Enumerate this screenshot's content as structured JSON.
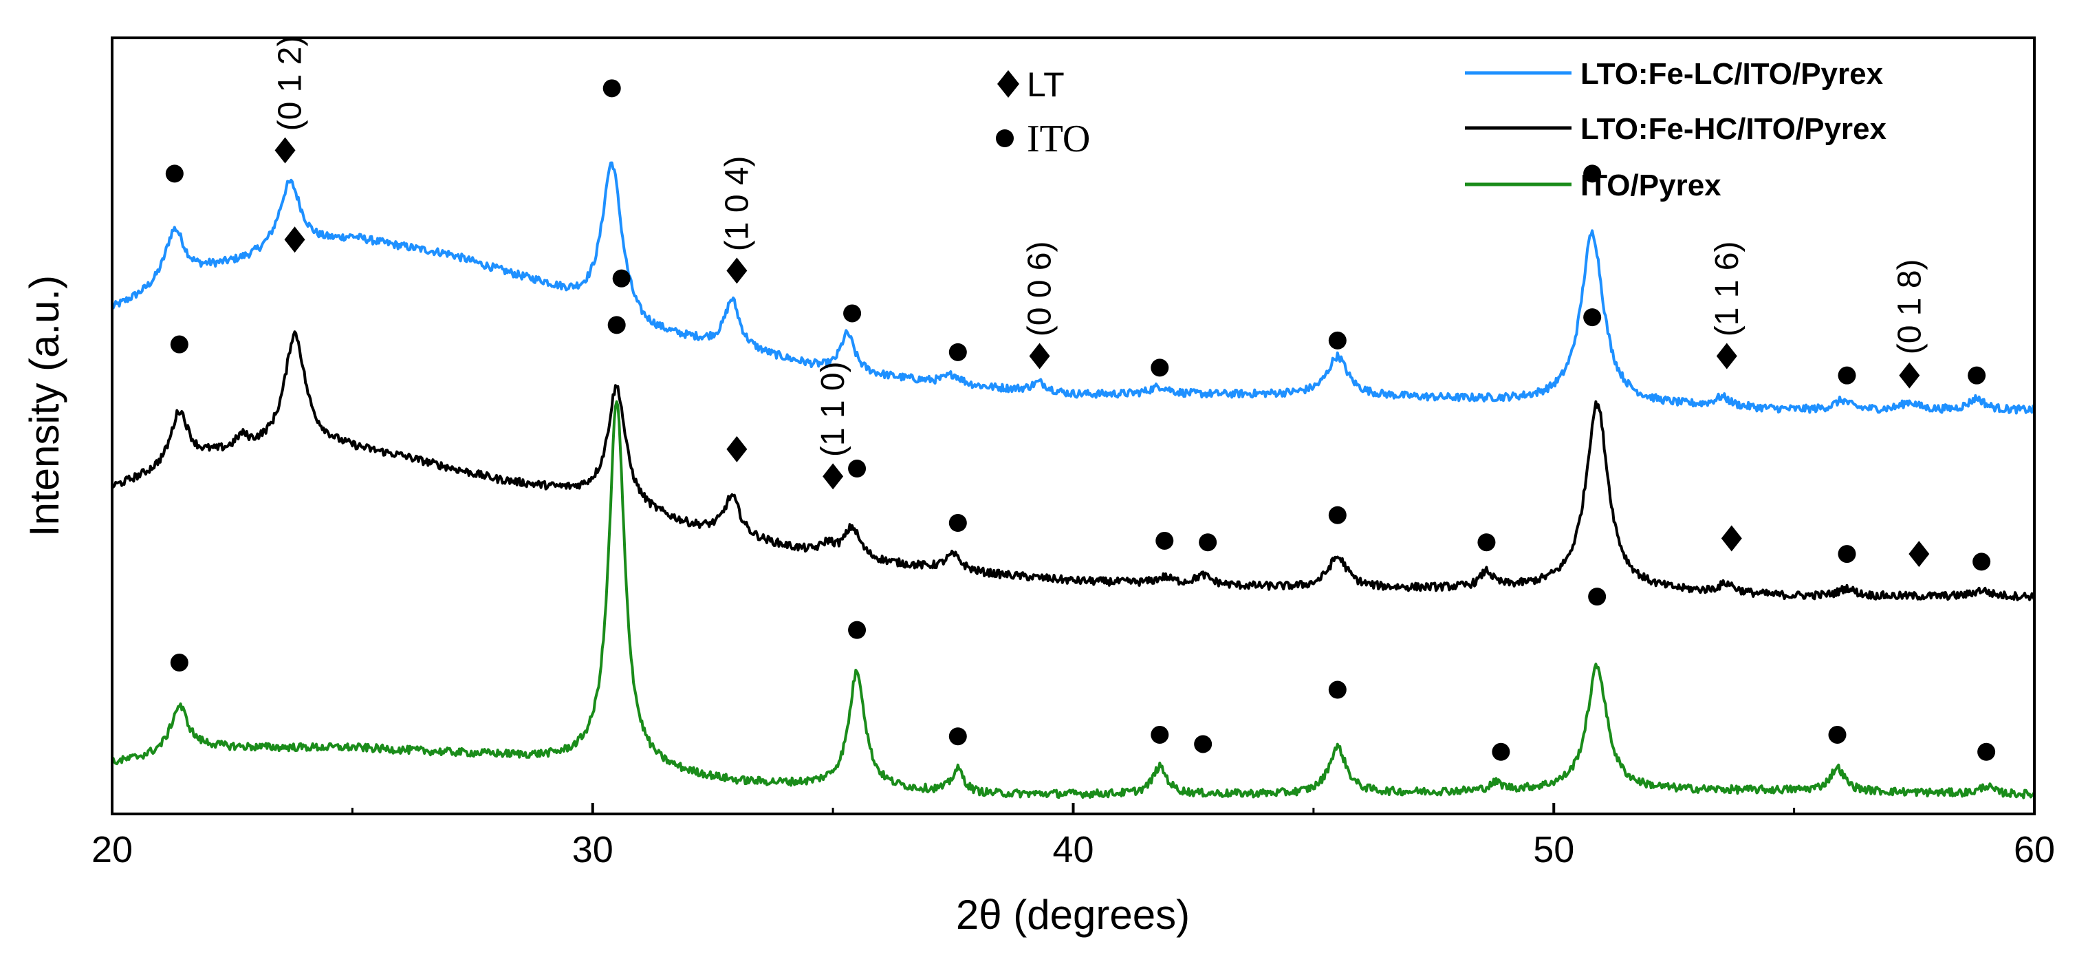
{
  "chart_data": {
    "type": "line",
    "title": "",
    "xlabel": "2θ (degrees)",
    "ylabel": "Intensity (a.u.)",
    "xlim": [
      20,
      60
    ],
    "ylim": [
      0,
      1
    ],
    "xticks": [
      20,
      30,
      40,
      50,
      60
    ],
    "xtick_labels": [
      "20",
      "30",
      "40",
      "50",
      "60"
    ],
    "yticks_shown": false,
    "legend_position": "top-right",
    "marker_legend": [
      {
        "symbol": "diamond",
        "label": "LT"
      },
      {
        "symbol": "circle",
        "label": "ITO"
      }
    ],
    "series": [
      {
        "name": "LTO:Fe-LC/ITO/Pyrex",
        "color": "#1e90ff",
        "baseline": [
          [
            20,
            0.65
          ],
          [
            22,
            0.7
          ],
          [
            25,
            0.74
          ],
          [
            27,
            0.72
          ],
          [
            29,
            0.68
          ],
          [
            31,
            0.62
          ],
          [
            33,
            0.6
          ],
          [
            35,
            0.57
          ],
          [
            38,
            0.55
          ],
          [
            40,
            0.54
          ],
          [
            45,
            0.54
          ],
          [
            50,
            0.53
          ],
          [
            55,
            0.52
          ],
          [
            60,
            0.52
          ]
        ],
        "peaks": [
          {
            "x": 21.3,
            "h": 0.07,
            "w": 0.25
          },
          {
            "x": 23.7,
            "h": 0.09,
            "w": 0.28
          },
          {
            "x": 30.4,
            "h": 0.2,
            "w": 0.25
          },
          {
            "x": 32.9,
            "h": 0.06,
            "w": 0.18
          },
          {
            "x": 35.3,
            "h": 0.05,
            "w": 0.18
          },
          {
            "x": 37.5,
            "h": 0.012,
            "w": 0.2
          },
          {
            "x": 39.3,
            "h": 0.012,
            "w": 0.2
          },
          {
            "x": 41.8,
            "h": 0.01,
            "w": 0.25
          },
          {
            "x": 45.5,
            "h": 0.05,
            "w": 0.25
          },
          {
            "x": 50.8,
            "h": 0.22,
            "w": 0.28
          },
          {
            "x": 53.5,
            "h": 0.012,
            "w": 0.2
          },
          {
            "x": 56.0,
            "h": 0.012,
            "w": 0.2
          },
          {
            "x": 57.4,
            "h": 0.01,
            "w": 0.2
          },
          {
            "x": 58.8,
            "h": 0.015,
            "w": 0.2
          }
        ],
        "markers": [
          {
            "x": 21.3,
            "symbol": "circle",
            "y": 0.825
          },
          {
            "x": 23.6,
            "symbol": "diamond",
            "y": 0.855
          },
          {
            "x": 30.4,
            "symbol": "circle",
            "y": 0.935
          },
          {
            "x": 33.0,
            "symbol": "diamond",
            "y": 0.7
          },
          {
            "x": 35.4,
            "symbol": "circle",
            "y": 0.645
          },
          {
            "x": 37.6,
            "symbol": "circle",
            "y": 0.595
          },
          {
            "x": 39.3,
            "symbol": "diamond",
            "y": 0.59
          },
          {
            "x": 41.8,
            "symbol": "circle",
            "y": 0.575
          },
          {
            "x": 45.5,
            "symbol": "circle",
            "y": 0.61
          },
          {
            "x": 50.8,
            "symbol": "circle",
            "y": 0.825
          },
          {
            "x": 53.6,
            "symbol": "diamond",
            "y": 0.59
          },
          {
            "x": 56.1,
            "symbol": "circle",
            "y": 0.565
          },
          {
            "x": 57.4,
            "symbol": "diamond",
            "y": 0.565
          },
          {
            "x": 58.8,
            "symbol": "circle",
            "y": 0.565
          }
        ]
      },
      {
        "name": "LTO:Fe-HC/ITO/Pyrex",
        "color": "#000000",
        "baseline": [
          [
            20,
            0.42
          ],
          [
            22,
            0.46
          ],
          [
            24,
            0.48
          ],
          [
            26,
            0.46
          ],
          [
            28,
            0.43
          ],
          [
            30,
            0.41
          ],
          [
            32,
            0.37
          ],
          [
            35,
            0.33
          ],
          [
            38,
            0.31
          ],
          [
            40,
            0.3
          ],
          [
            45,
            0.29
          ],
          [
            50,
            0.29
          ],
          [
            55,
            0.28
          ],
          [
            60,
            0.28
          ]
        ],
        "peaks": [
          {
            "x": 21.4,
            "h": 0.07,
            "w": 0.22
          },
          {
            "x": 22.7,
            "h": 0.015,
            "w": 0.15
          },
          {
            "x": 23.8,
            "h": 0.14,
            "w": 0.25
          },
          {
            "x": 30.5,
            "h": 0.15,
            "w": 0.22
          },
          {
            "x": 32.9,
            "h": 0.05,
            "w": 0.2
          },
          {
            "x": 34.9,
            "h": 0.015,
            "w": 0.18
          },
          {
            "x": 35.4,
            "h": 0.04,
            "w": 0.2
          },
          {
            "x": 37.5,
            "h": 0.02,
            "w": 0.2
          },
          {
            "x": 41.9,
            "h": 0.008,
            "w": 0.2
          },
          {
            "x": 42.7,
            "h": 0.012,
            "w": 0.2
          },
          {
            "x": 45.5,
            "h": 0.04,
            "w": 0.25
          },
          {
            "x": 48.6,
            "h": 0.02,
            "w": 0.15
          },
          {
            "x": 50.9,
            "h": 0.24,
            "w": 0.28
          },
          {
            "x": 53.6,
            "h": 0.012,
            "w": 0.2
          },
          {
            "x": 56.1,
            "h": 0.01,
            "w": 0.2
          },
          {
            "x": 58.9,
            "h": 0.008,
            "w": 0.2
          }
        ],
        "markers": [
          {
            "x": 21.4,
            "symbol": "circle",
            "y": 0.605
          },
          {
            "x": 23.8,
            "symbol": "diamond",
            "y": 0.74
          },
          {
            "x": 30.6,
            "symbol": "circle",
            "y": 0.69
          },
          {
            "x": 33.0,
            "symbol": "diamond",
            "y": 0.47
          },
          {
            "x": 35.0,
            "symbol": "diamond",
            "y": 0.435
          },
          {
            "x": 35.5,
            "symbol": "circle",
            "y": 0.445
          },
          {
            "x": 37.6,
            "symbol": "circle",
            "y": 0.375
          },
          {
            "x": 41.9,
            "symbol": "circle",
            "y": 0.352
          },
          {
            "x": 42.8,
            "symbol": "circle",
            "y": 0.35
          },
          {
            "x": 45.5,
            "symbol": "circle",
            "y": 0.385
          },
          {
            "x": 48.6,
            "symbol": "circle",
            "y": 0.35
          },
          {
            "x": 50.8,
            "symbol": "circle",
            "y": 0.64
          },
          {
            "x": 53.7,
            "symbol": "diamond",
            "y": 0.355
          },
          {
            "x": 56.1,
            "symbol": "circle",
            "y": 0.335
          },
          {
            "x": 57.6,
            "symbol": "diamond",
            "y": 0.335
          },
          {
            "x": 58.9,
            "symbol": "circle",
            "y": 0.325
          }
        ]
      },
      {
        "name": "ITO/Pyrex",
        "color": "#1a8c1a",
        "baseline": [
          [
            20,
            0.065
          ],
          [
            22,
            0.085
          ],
          [
            25,
            0.085
          ],
          [
            28,
            0.075
          ],
          [
            30,
            0.065
          ],
          [
            33,
            0.04
          ],
          [
            35,
            0.035
          ],
          [
            38,
            0.025
          ],
          [
            40,
            0.025
          ],
          [
            45,
            0.025
          ],
          [
            50,
            0.03
          ],
          [
            55,
            0.03
          ],
          [
            60,
            0.025
          ]
        ],
        "peaks": [
          {
            "x": 21.4,
            "h": 0.06,
            "w": 0.22
          },
          {
            "x": 30.5,
            "h": 0.47,
            "w": 0.2
          },
          {
            "x": 35.5,
            "h": 0.15,
            "w": 0.2
          },
          {
            "x": 37.6,
            "h": 0.03,
            "w": 0.15
          },
          {
            "x": 41.8,
            "h": 0.035,
            "w": 0.18
          },
          {
            "x": 45.5,
            "h": 0.06,
            "w": 0.22
          },
          {
            "x": 48.8,
            "h": 0.01,
            "w": 0.15
          },
          {
            "x": 50.9,
            "h": 0.16,
            "w": 0.25
          },
          {
            "x": 55.9,
            "h": 0.03,
            "w": 0.18
          },
          {
            "x": 59.0,
            "h": 0.01,
            "w": 0.15
          }
        ],
        "markers": [
          {
            "x": 21.4,
            "symbol": "circle",
            "y": 0.195
          },
          {
            "x": 30.5,
            "symbol": "circle",
            "y": 0.63
          },
          {
            "x": 35.5,
            "symbol": "circle",
            "y": 0.237
          },
          {
            "x": 37.6,
            "symbol": "circle",
            "y": 0.1
          },
          {
            "x": 41.8,
            "symbol": "circle",
            "y": 0.102
          },
          {
            "x": 42.7,
            "symbol": "circle",
            "y": 0.09
          },
          {
            "x": 45.5,
            "symbol": "circle",
            "y": 0.16
          },
          {
            "x": 48.9,
            "symbol": "circle",
            "y": 0.08
          },
          {
            "x": 50.9,
            "symbol": "circle",
            "y": 0.28
          },
          {
            "x": 55.9,
            "symbol": "circle",
            "y": 0.102
          },
          {
            "x": 59.0,
            "symbol": "circle",
            "y": 0.08
          }
        ]
      }
    ],
    "peak_labels": [
      {
        "text": "(0 1 2)",
        "x": 23.7,
        "y": 0.88
      },
      {
        "text": "(1 0 4)",
        "x": 33.0,
        "y": 0.725
      },
      {
        "text": "(0 0 6)",
        "x": 39.3,
        "y": 0.615
      },
      {
        "text": "(1 1 0)",
        "x": 35.0,
        "y": 0.46
      },
      {
        "text": "(1 1 6)",
        "x": 53.6,
        "y": 0.615
      },
      {
        "text": "(0 1 8)",
        "x": 57.4,
        "y": 0.592
      }
    ]
  }
}
